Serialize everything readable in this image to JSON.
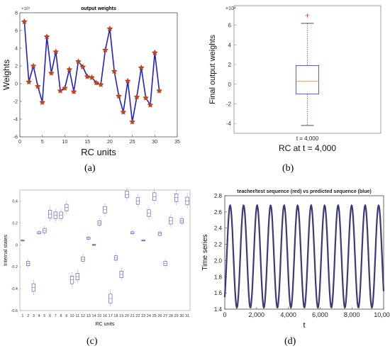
{
  "chart_data": [
    {
      "type": "line",
      "panel": "a",
      "title": "output weights",
      "xlabel": "RC units",
      "ylabel": "Weights",
      "y_multiplier": "×10⁴",
      "xlim": [
        0,
        35
      ],
      "ylim": [
        -6,
        8
      ],
      "x_ticks": [
        0,
        5,
        10,
        15,
        20,
        25,
        30,
        35
      ],
      "y_ticks": [
        -6,
        -4,
        -2,
        0,
        2,
        4,
        6,
        8
      ],
      "x": [
        1,
        2,
        3,
        4,
        5,
        6,
        7,
        8,
        9,
        10,
        11,
        12,
        13,
        14,
        15,
        16,
        17,
        18,
        19,
        20,
        21,
        22,
        23,
        24,
        25,
        26,
        27,
        28,
        29,
        30,
        31
      ],
      "values": [
        7.0,
        0.2,
        2.0,
        -0.3,
        -2.1,
        5.3,
        1.2,
        3.6,
        -0.8,
        -0.5,
        1.6,
        -0.9,
        2.5,
        1.9,
        0.8,
        0.7,
        0.1,
        -0.1,
        3.8,
        6.2,
        1.4,
        -1.4,
        -3.2,
        0.3,
        -4.3,
        -1.5,
        1.8,
        -1.6,
        -2.4,
        3.5,
        -0.8
      ],
      "grid": false
    },
    {
      "type": "box",
      "panel": "b",
      "ylabel": "Final output weights",
      "y_multiplier": "×10⁴",
      "category": "t = 4,000",
      "xlabel": "RC at t = 4,000",
      "ylim": [
        -5,
        8
      ],
      "y_ticks": [
        -4,
        -2,
        0,
        2,
        4,
        6
      ],
      "whisker_low": -4.2,
      "q1": -1.0,
      "median": 0.3,
      "q3": 1.9,
      "whisker_high": 6.2,
      "outliers": [
        7.0
      ]
    },
    {
      "type": "box",
      "panel": "c",
      "xlabel": "RC units",
      "ylabel": "Internal states",
      "ylim": [
        -0.6,
        0.5
      ],
      "y_ticks": [
        -0.6,
        -0.4,
        -0.2,
        0,
        0.2,
        0.4
      ],
      "categories": [
        "1",
        "2",
        "3",
        "4",
        "5",
        "6",
        "7",
        "8",
        "9",
        "10",
        "11",
        "12",
        "13",
        "14",
        "15",
        "16",
        "17",
        "18",
        "19",
        "20",
        "21",
        "22",
        "23",
        "24",
        "25",
        "26",
        "27",
        "28",
        "29",
        "30",
        "31"
      ],
      "medians": [
        0.04,
        -0.17,
        -0.39,
        0.11,
        0.13,
        0.28,
        0.27,
        0.27,
        0.34,
        -0.32,
        -0.29,
        -0.13,
        0.06,
        0.0,
        0.2,
        0.32,
        -0.49,
        -0.12,
        -0.27,
        0.46,
        0.11,
        0.4,
        0.04,
        0.29,
        0.44,
        0.1,
        -0.17,
        0.22,
        0.43,
        0.22,
        0.4
      ],
      "spreads": [
        0.005,
        0.02,
        0.035,
        0.01,
        0.02,
        0.035,
        0.03,
        0.03,
        0.03,
        0.035,
        0.03,
        0.02,
        0.01,
        0.005,
        0.02,
        0.03,
        0.04,
        0.02,
        0.03,
        0.03,
        0.01,
        0.03,
        0.005,
        0.03,
        0.035,
        0.015,
        0.02,
        0.03,
        0.035,
        0.02,
        0.035
      ]
    },
    {
      "type": "line",
      "panel": "d",
      "title": "teacher/test sequence (red) vs predicted sequence (blue)",
      "xlabel": "t",
      "ylabel": "Time series",
      "xlim": [
        0,
        10000
      ],
      "ylim": [
        1.4,
        2.8
      ],
      "x_ticks": [
        0,
        2000,
        4000,
        6000,
        8000,
        10000
      ],
      "x_tick_labels": [
        "0",
        "2,000",
        "4,000",
        "6,000",
        "8,000",
        "10,000"
      ],
      "y_ticks": [
        1.4,
        1.6,
        1.8,
        2.0,
        2.2,
        2.4,
        2.6,
        2.8
      ],
      "series_description": "periodic oscillation",
      "mean": 2.05,
      "amplitude": 0.63,
      "period": 850,
      "start_value": 1.55
    }
  ],
  "captions": {
    "a": "(a)",
    "b": "(b)",
    "c": "(c)",
    "d": "(d)"
  },
  "colors": {
    "line": "#1f1fcc",
    "marker_star": "#8a5a10",
    "marker_plus": "#ff2a2a",
    "box": "#4a4ad8",
    "median": "#e8a04a",
    "sequence": "#3b3b78"
  }
}
